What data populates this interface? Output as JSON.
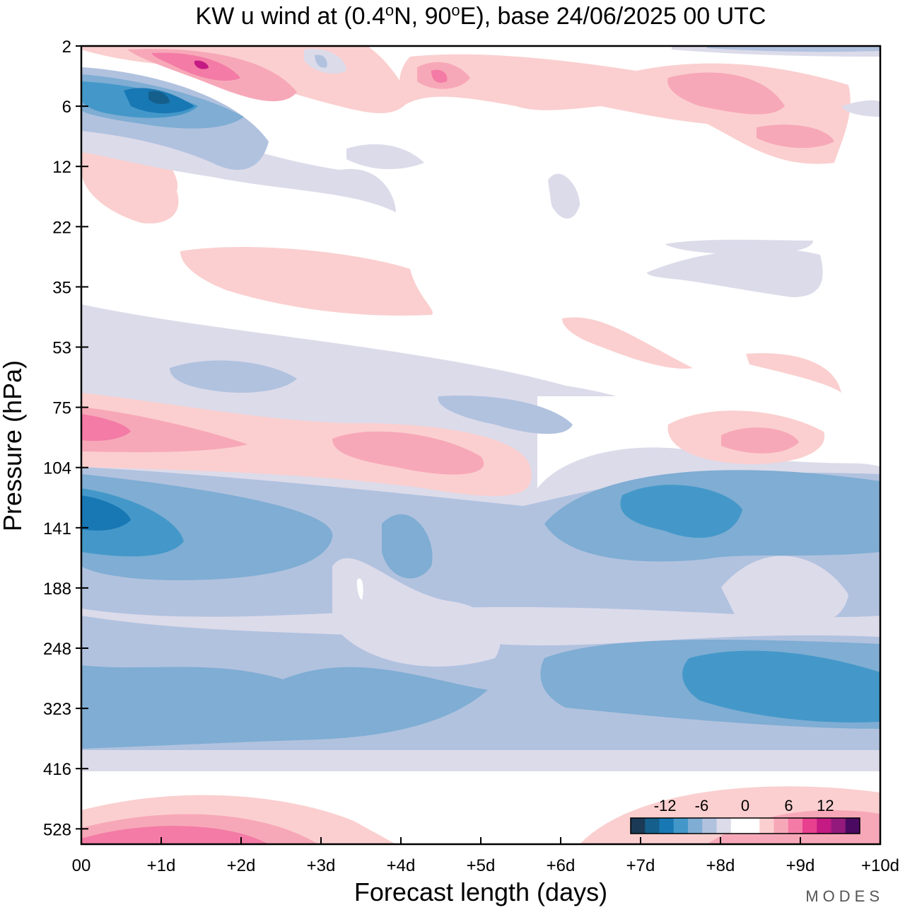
{
  "chart_data": {
    "type": "heatmap",
    "title_parts": [
      "KW u wind at (0.4",
      "o",
      "N, 90",
      "o",
      "E),  base 24/06/2025  00 UTC"
    ],
    "xlabel": "Forecast length (days)",
    "ylabel": "Pressure (hPa)",
    "x_ticks": [
      "00",
      "+1d",
      "+2d",
      "+3d",
      "+4d",
      "+5d",
      "+6d",
      "+7d",
      "+8d",
      "+9d",
      "+10d"
    ],
    "y_ticks": [
      "2",
      "6",
      "12",
      "22",
      "35",
      "53",
      "75",
      "104",
      "141",
      "188",
      "248",
      "323",
      "416",
      "528"
    ],
    "xlim": [
      0,
      10
    ],
    "colorbar": {
      "colors": [
        "#1b3a55",
        "#155f8c",
        "#1878b4",
        "#4498c9",
        "#7fadd3",
        "#b1c2df",
        "#dcdbea",
        "#ffffff",
        "#ffffff",
        "#fbcfcf",
        "#f7a8b8",
        "#f37ba5",
        "#e8408f",
        "#c41a84",
        "#921a7c",
        "#4b0a62"
      ],
      "labels": [
        "-12",
        "-6",
        "0",
        "6",
        "12"
      ]
    },
    "levels": [
      "dark-blue",
      "mid-blue",
      "blue",
      "light-blue",
      "pale-blue",
      "lavender",
      "pale-pink",
      "light-pink",
      "pink",
      "magenta",
      "deep-magenta"
    ]
  },
  "brand": "MODES"
}
